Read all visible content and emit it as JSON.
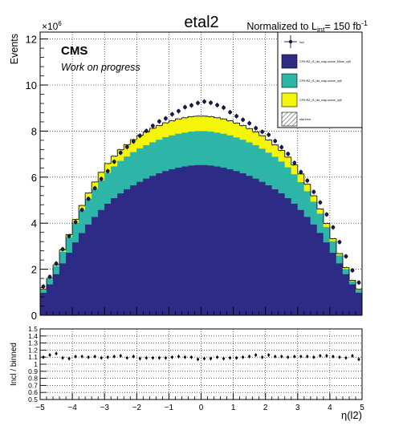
{
  "chart_data": [
    {
      "type": "bar",
      "stacked": true,
      "title": "etal2",
      "lumi_label": "Normalized to L",
      "lumi_sub": "int",
      "lumi_value": "= 150 fb",
      "lumi_sup": "-1",
      "cms_label": "CMS",
      "cms_sublabel": "Work on progress",
      "ylabel": "Events",
      "y_exponent": "×10",
      "y_exponent_power": "6",
      "xlabel": "η(l2)",
      "xlim": [
        -5,
        5
      ],
      "ylim": [
        0,
        12.3
      ],
      "yscale": 1000000,
      "yticks": [
        "0",
        "2",
        "4",
        "6",
        "8",
        "10",
        "12"
      ],
      "grid": true,
      "legend_position": "top-right",
      "legend": [
        {
          "label": "Incl",
          "kind": "marker"
        },
        {
          "label": "CP5+B2_f1_hle_map.scene_b5ure_cp5",
          "kind": "fill",
          "color": "#2e2b86"
        },
        {
          "label": "CP5+B2_f1_hle_map.scene_cp5",
          "kind": "fill",
          "color": "#2db6a8"
        },
        {
          "label": "CP5+B2_f1_hle_map.scene_cp5",
          "kind": "fill",
          "color": "#f5f50a"
        },
        {
          "label": "stat error",
          "kind": "hatch"
        }
      ],
      "series": [
        {
          "name": "CP5+B2_f1_hle_map.scene_b5ure_cp5",
          "color": "#2e2b86",
          "values": [
            0.98,
            1.35,
            1.79,
            2.26,
            2.72,
            3.17,
            3.58,
            3.95,
            4.28,
            4.58,
            4.85,
            5.09,
            5.3,
            5.48,
            5.65,
            5.8,
            5.94,
            6.06,
            6.17,
            6.27,
            6.35,
            6.42,
            6.47,
            6.51,
            6.53,
            6.53,
            6.51,
            6.47,
            6.42,
            6.35,
            6.27,
            6.17,
            6.06,
            5.94,
            5.8,
            5.65,
            5.48,
            5.3,
            5.09,
            4.85,
            4.58,
            4.28,
            3.95,
            3.58,
            3.17,
            2.72,
            2.26,
            1.79,
            1.35,
            0.98
          ]
        },
        {
          "name": "CP5+B2_f1_hle_map.scene_cp5",
          "color": "#2db6a8",
          "values": [
            0.13,
            0.22,
            0.34,
            0.5,
            0.67,
            0.84,
            0.99,
            1.11,
            1.21,
            1.28,
            1.34,
            1.38,
            1.41,
            1.42,
            1.44,
            1.45,
            1.45,
            1.46,
            1.46,
            1.47,
            1.47,
            1.47,
            1.47,
            1.47,
            1.47,
            1.47,
            1.47,
            1.47,
            1.47,
            1.47,
            1.46,
            1.46,
            1.45,
            1.45,
            1.44,
            1.42,
            1.41,
            1.38,
            1.34,
            1.28,
            1.21,
            1.11,
            0.99,
            0.84,
            0.67,
            0.5,
            0.34,
            0.22,
            0.13,
            0.13
          ]
        },
        {
          "name": "CP5+B2_f1_hle_map.scene_cp5",
          "color": "#f5f50a",
          "values": [
            0.03,
            0.04,
            0.06,
            0.08,
            0.11,
            0.15,
            0.2,
            0.25,
            0.3,
            0.35,
            0.4,
            0.44,
            0.48,
            0.51,
            0.54,
            0.56,
            0.58,
            0.6,
            0.61,
            0.62,
            0.63,
            0.64,
            0.64,
            0.65,
            0.65,
            0.65,
            0.65,
            0.64,
            0.64,
            0.63,
            0.62,
            0.61,
            0.6,
            0.58,
            0.56,
            0.54,
            0.51,
            0.48,
            0.44,
            0.4,
            0.35,
            0.3,
            0.25,
            0.2,
            0.15,
            0.11,
            0.08,
            0.06,
            0.04,
            0.03
          ]
        },
        {
          "name": "Incl",
          "kind": "points",
          "values": [
            1.25,
            1.67,
            2.25,
            2.87,
            3.44,
            4.05,
            4.58,
            5.06,
            5.52,
            5.92,
            6.26,
            6.67,
            7.06,
            7.31,
            7.55,
            7.8,
            8.01,
            8.23,
            8.42,
            8.55,
            8.73,
            8.87,
            9.04,
            9.12,
            9.22,
            9.28,
            9.23,
            9.13,
            9.02,
            8.82,
            8.65,
            8.49,
            8.34,
            8.13,
            7.97,
            7.84,
            7.57,
            7.3,
            7.01,
            6.62,
            6.22,
            5.85,
            5.36,
            4.9,
            4.38,
            3.82,
            3.18,
            2.56,
            1.95,
            1.42
          ]
        }
      ]
    },
    {
      "type": "scatter",
      "ylabel": "Incl / binned",
      "xlabel": "η(l2)",
      "xlim": [
        -5,
        5
      ],
      "ylim": [
        0.5,
        1.5
      ],
      "yticks": [
        "0.5",
        "0.6",
        "0.7",
        "0.8",
        "0.9",
        "1",
        "1.1",
        "1.2",
        "1.3",
        "1.4",
        "1.5"
      ],
      "xticks": [
        "−5",
        "−4",
        "−3",
        "−2",
        "−1",
        "0",
        "1",
        "2",
        "3",
        "4",
        "5"
      ],
      "grid": true,
      "values": [
        1.1,
        1.13,
        1.15,
        1.09,
        1.08,
        1.11,
        1.11,
        1.1,
        1.11,
        1.09,
        1.1,
        1.11,
        1.12,
        1.09,
        1.11,
        1.08,
        1.09,
        1.09,
        1.09,
        1.09,
        1.1,
        1.11,
        1.1,
        1.1,
        1.07,
        1.08,
        1.08,
        1.1,
        1.08,
        1.09,
        1.09,
        1.1,
        1.11,
        1.13,
        1.1,
        1.13,
        1.11,
        1.11,
        1.1,
        1.11,
        1.11,
        1.11,
        1.1,
        1.12,
        1.12,
        1.11,
        1.1,
        1.09,
        1.12,
        1.07
      ]
    }
  ]
}
